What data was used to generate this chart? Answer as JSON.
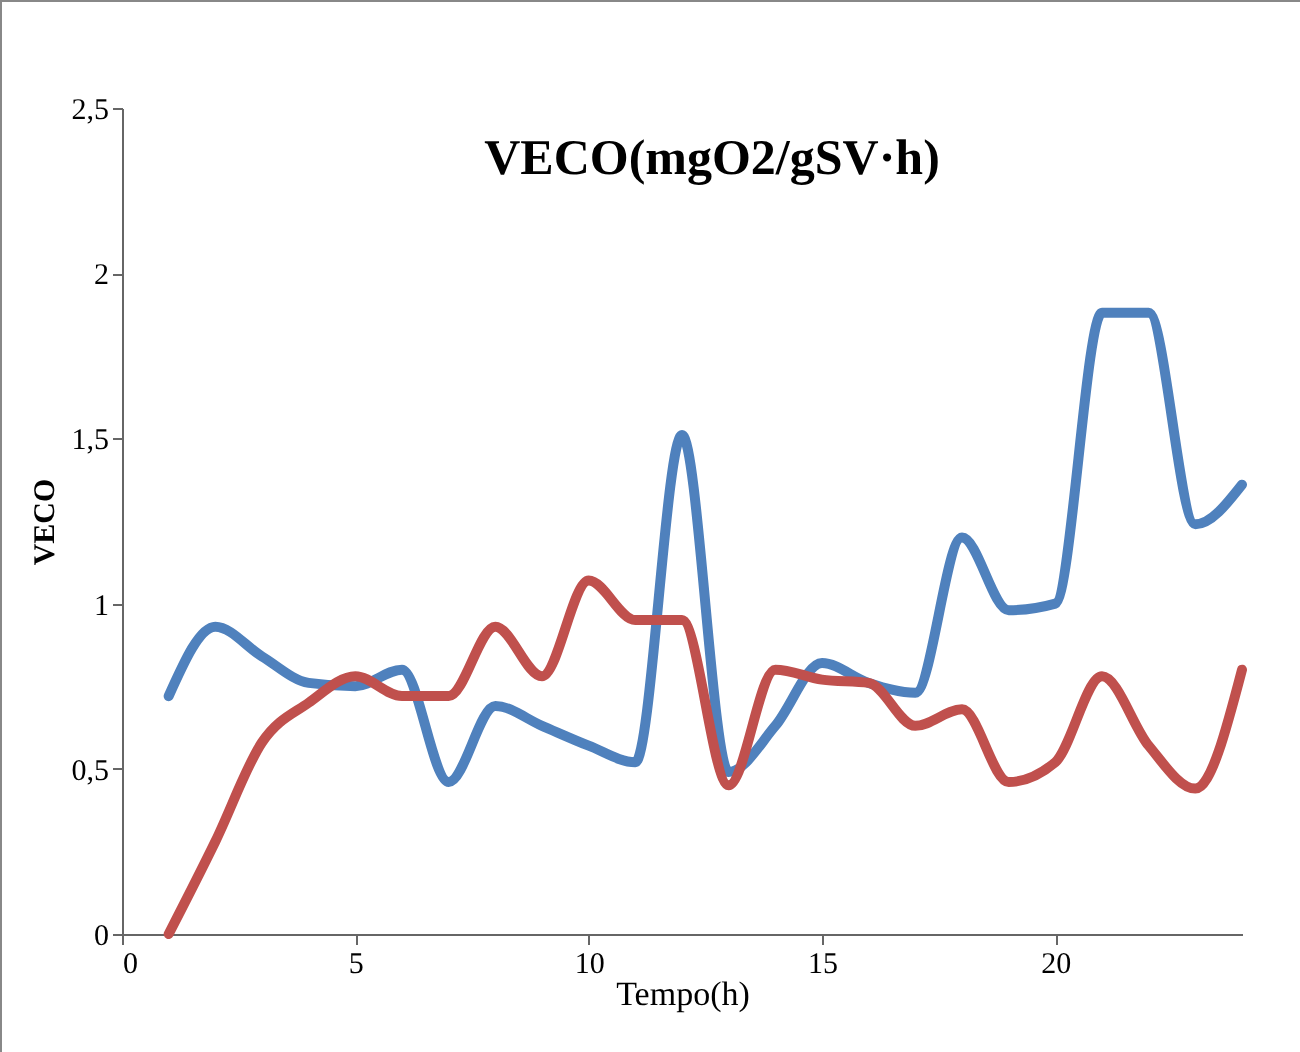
{
  "chart_data": {
    "type": "line",
    "title": "VECO(mgO2/gSV·h)",
    "xlabel": "Tempo(h)",
    "ylabel": "VECO",
    "x": [
      1,
      2,
      3,
      4,
      5,
      6,
      7,
      8,
      9,
      10,
      11,
      12,
      13,
      14,
      15,
      16,
      17,
      18,
      19,
      20,
      21,
      22,
      23,
      24
    ],
    "series": [
      {
        "color": "#4f81bd",
        "values": [
          0.72,
          0.93,
          0.84,
          0.76,
          0.75,
          0.8,
          0.46,
          0.69,
          0.63,
          0.57,
          0.52,
          1.51,
          0.49,
          0.63,
          0.82,
          0.76,
          0.73,
          1.2,
          0.98,
          1.0,
          1.88,
          1.88,
          1.24,
          1.36
        ]
      },
      {
        "color": "#c0504d",
        "values": [
          0,
          0.28,
          0.58,
          0.7,
          0.78,
          0.72,
          0.72,
          0.93,
          0.78,
          1.07,
          0.95,
          0.95,
          0.45,
          0.8,
          0.77,
          0.76,
          0.63,
          0.68,
          0.46,
          0.52,
          0.78,
          0.57,
          0.44,
          0.8
        ]
      }
    ],
    "xlim": [
      0,
      24
    ],
    "xticks": [
      0,
      5,
      10,
      15,
      20
    ],
    "ylim": [
      0,
      2.5
    ],
    "yticks": [
      0,
      {
        "value": 0.5,
        "label": "0,5"
      },
      1,
      {
        "value": 1.5,
        "label": "1,5"
      },
      2,
      {
        "value": 2.5,
        "label": "2,5"
      }
    ],
    "legend": false
  }
}
